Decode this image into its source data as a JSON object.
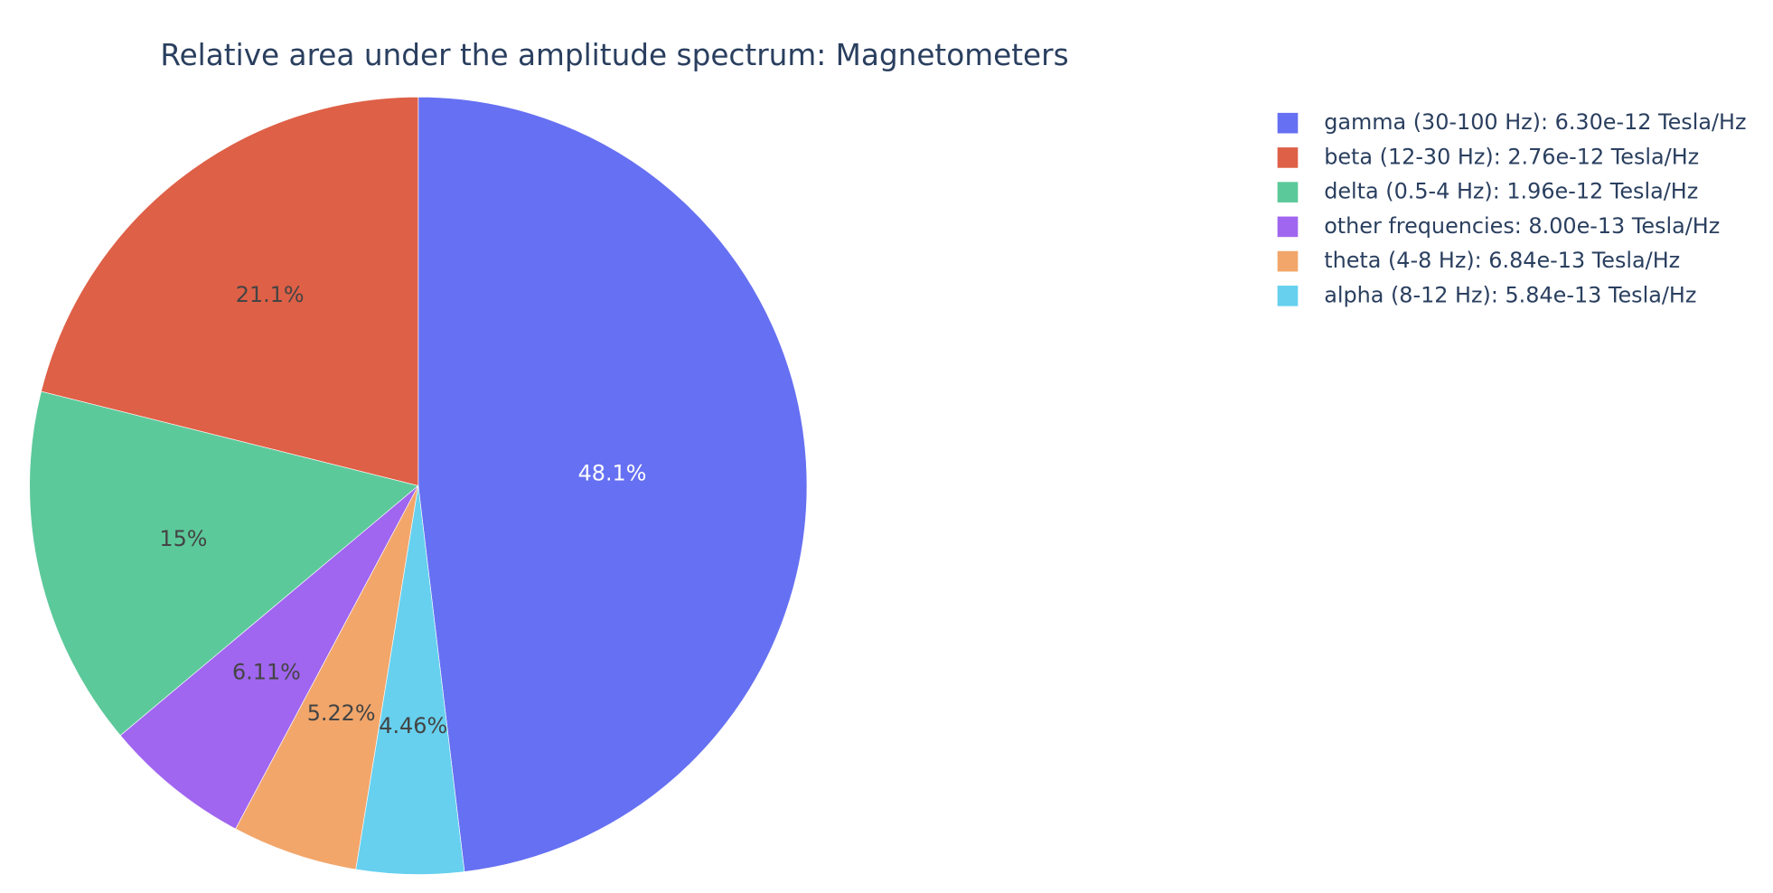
{
  "chart_data": {
    "type": "pie",
    "title": "Relative area under the amplitude spectrum: Magnetometers",
    "categories": [
      "gamma (30-100 Hz): 6.30e-12 Tesla/Hz",
      "beta (12-30 Hz): 2.76e-12 Tesla/Hz",
      "delta (0.5-4 Hz): 1.96e-12 Tesla/Hz",
      "other frequencies: 8.00e-13 Tesla/Hz",
      "theta (4-8 Hz): 6.84e-13 Tesla/Hz",
      "alpha (8-12 Hz): 5.84e-13 Tesla/Hz"
    ],
    "values": [
      48.1,
      21.1,
      15,
      6.11,
      5.22,
      4.46
    ],
    "value_labels": [
      "48.1%",
      "21.1%",
      "15%",
      "6.11%",
      "5.22%",
      "4.46%"
    ],
    "colors": [
      "#6670f2",
      "#de6047",
      "#5cc99a",
      "#a066f0",
      "#f2a66a",
      "#66d0ee"
    ],
    "label_colors": [
      "#ffffff",
      "#444444",
      "#444444",
      "#444444",
      "#444444",
      "#444444"
    ],
    "legend": "top-right"
  }
}
